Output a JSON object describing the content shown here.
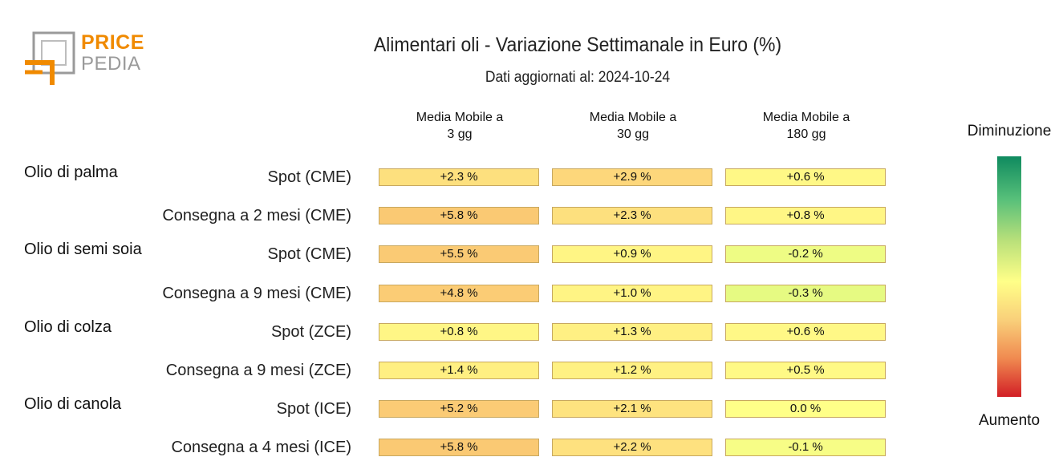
{
  "logo": {
    "text_top": "PRICE",
    "text_bottom": "PEDIA",
    "colors": {
      "orange": "#f08a00",
      "gray": "#9a9a9a"
    }
  },
  "header": {
    "title": "Alimentari oli - Variazione Settimanale in Euro (%)",
    "subtitle": "Dati aggiornati al: 2024-10-24"
  },
  "legend": {
    "top": "Diminuzione",
    "bottom": "Aumento",
    "colors": [
      "#0f8a5f",
      "#ffff88",
      "#d21f26"
    ]
  },
  "chart_data": {
    "type": "table",
    "title": "Alimentari oli - Variazione Settimanale in Euro (%)",
    "columns": [
      {
        "line1": "Media Mobile a",
        "line2": "3 gg"
      },
      {
        "line1": "Media Mobile a",
        "line2": "30 gg"
      },
      {
        "line1": "Media Mobile a",
        "line2": "180 gg"
      }
    ],
    "groups": [
      "Olio di palma",
      "Olio di semi soia",
      "Olio di colza",
      "Olio di canola"
    ],
    "rows": [
      {
        "group": "Olio di palma",
        "label": "Spot (CME)",
        "values": [
          2.3,
          2.9,
          0.6
        ],
        "texts": [
          "+2.3 %",
          "+2.9 %",
          "+0.6 %"
        ]
      },
      {
        "group": "",
        "label": "Consegna a 2 mesi (CME)",
        "values": [
          5.8,
          2.3,
          0.8
        ],
        "texts": [
          "+5.8 %",
          "+2.3 %",
          "+0.8 %"
        ]
      },
      {
        "group": "Olio di semi soia",
        "label": "Spot (CME)",
        "values": [
          5.5,
          0.9,
          -0.2
        ],
        "texts": [
          "+5.5 %",
          "+0.9 %",
          "-0.2 %"
        ]
      },
      {
        "group": "",
        "label": "Consegna a 9 mesi (CME)",
        "values": [
          4.8,
          1.0,
          -0.3
        ],
        "texts": [
          "+4.8 %",
          "+1.0 %",
          "-0.3 %"
        ]
      },
      {
        "group": "Olio di colza",
        "label": "Spot (ZCE)",
        "values": [
          0.8,
          1.3,
          0.6
        ],
        "texts": [
          "+0.8 %",
          "+1.3 %",
          "+0.6 %"
        ]
      },
      {
        "group": "",
        "label": "Consegna a 9 mesi (ZCE)",
        "values": [
          1.4,
          1.2,
          0.5
        ],
        "texts": [
          "+1.4 %",
          "+1.2 %",
          "+0.5 %"
        ]
      },
      {
        "group": "Olio di canola",
        "label": "Spot (ICE)",
        "values": [
          5.2,
          2.1,
          0.0
        ],
        "texts": [
          "+5.2 %",
          "+2.1 %",
          "0.0 %"
        ]
      },
      {
        "group": "",
        "label": "Consegna a 4 mesi (ICE)",
        "values": [
          5.8,
          2.2,
          -0.1
        ],
        "texts": [
          "+5.8 %",
          "+2.2 %",
          "-0.1 %"
        ]
      }
    ]
  }
}
